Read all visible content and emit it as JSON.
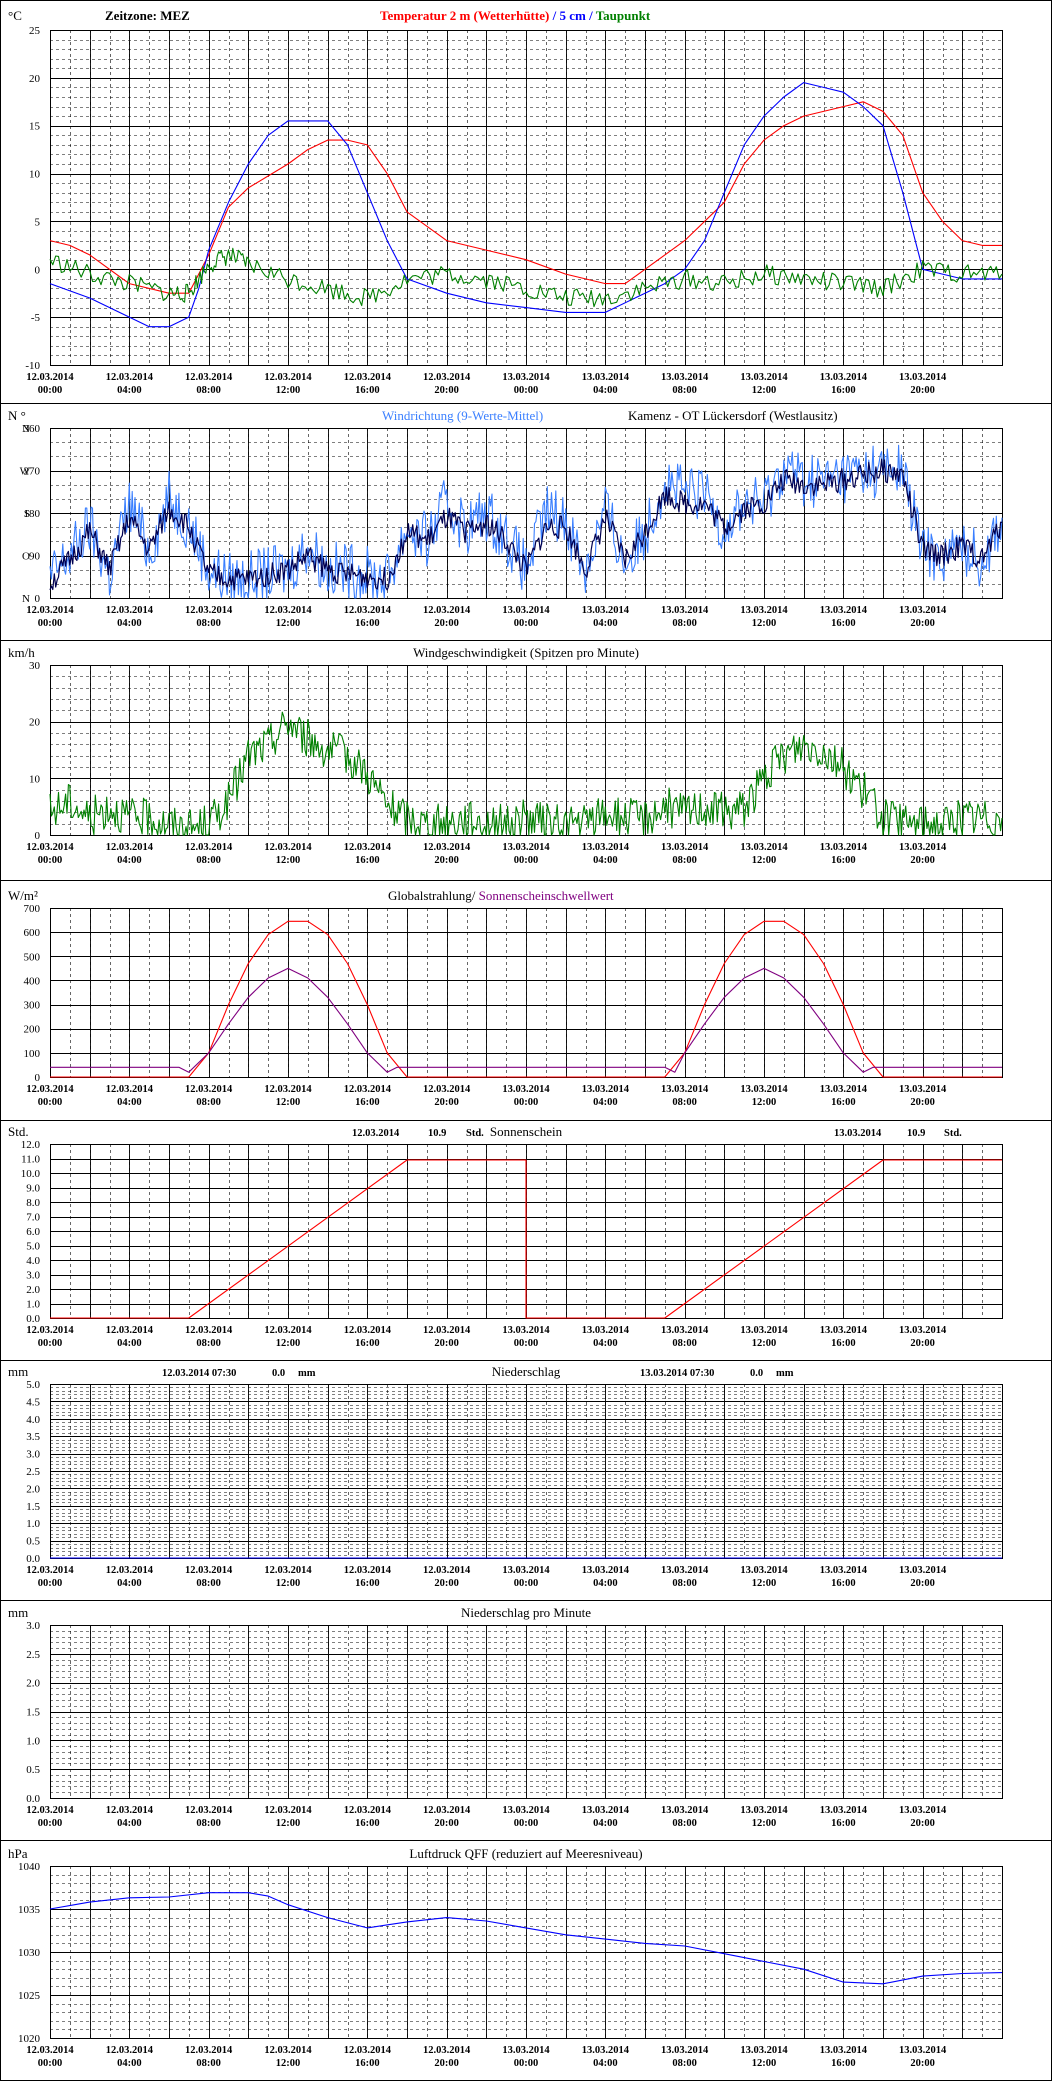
{
  "time_labels": [
    [
      "12.03.2014",
      "00:00"
    ],
    [
      "12.03.2014",
      "04:00"
    ],
    [
      "12.03.2014",
      "08:00"
    ],
    [
      "12.03.2014",
      "12:00"
    ],
    [
      "12.03.2014",
      "16:00"
    ],
    [
      "12.03.2014",
      "20:00"
    ],
    [
      "13.03.2014",
      "00:00"
    ],
    [
      "13.03.2014",
      "04:00"
    ],
    [
      "13.03.2014",
      "08:00"
    ],
    [
      "13.03.2014",
      "12:00"
    ],
    [
      "13.03.2014",
      "16:00"
    ],
    [
      "13.03.2014",
      "20:00"
    ]
  ],
  "colors": {
    "red": "#ff0000",
    "blue": "#0000ff",
    "green": "#008000",
    "purple": "#800080",
    "lightblue": "#3a7fff",
    "navy": "#000050"
  },
  "chart_data": [
    {
      "type": "line",
      "unit": "°C",
      "title_left": "Zeitzone: MEZ",
      "title_parts": [
        "Temperatur 2 m (Wetterhütte)",
        " / ",
        "5 cm",
        " / ",
        "Taupunkt"
      ],
      "ylim": [
        -10,
        25
      ],
      "y_ticks": [
        "25",
        "20",
        "15",
        "10",
        "5",
        "0",
        "-5",
        "-10"
      ],
      "series": [
        {
          "name": "Temperatur 2 m (Wetterhütte)",
          "color": "#ff0000",
          "x": [
            0,
            1,
            2,
            4,
            6,
            7,
            8,
            9,
            10,
            12,
            13,
            14,
            15,
            16,
            17,
            18,
            20,
            22,
            24,
            26,
            27,
            28,
            29,
            30,
            32,
            34,
            35,
            36,
            37,
            38,
            39,
            40,
            41,
            42,
            43,
            44,
            45,
            46,
            47,
            48
          ],
          "values": [
            3,
            2.5,
            1.5,
            -1.5,
            -2.5,
            -2.5,
            1.5,
            6.5,
            8.5,
            11,
            12.5,
            13.5,
            13.5,
            13,
            10,
            6,
            3,
            2,
            1,
            -0.5,
            -1,
            -1.5,
            -1.5,
            0,
            3,
            7,
            11,
            13.5,
            15,
            16,
            16.5,
            17,
            17.5,
            16.5,
            14,
            8,
            5,
            3,
            2.5,
            2.5
          ]
        },
        {
          "name": "5 cm",
          "color": "#0000ff",
          "x": [
            0,
            2,
            4,
            5,
            6,
            7,
            7.5,
            8,
            9,
            10,
            11,
            12,
            13,
            14,
            15,
            16,
            17,
            18,
            20,
            22,
            24,
            26,
            28,
            30,
            31,
            32,
            33,
            34,
            35,
            36,
            37,
            38,
            39,
            40,
            41,
            42,
            43,
            44,
            45,
            46,
            47,
            48
          ],
          "values": [
            -1.5,
            -3,
            -5,
            -6,
            -6,
            -5,
            -2,
            2,
            7,
            11,
            14,
            15.5,
            15.5,
            15.5,
            13,
            8,
            3,
            -1,
            -2.5,
            -3.5,
            -4,
            -4.5,
            -4.5,
            -2.5,
            -1.5,
            0,
            3,
            8,
            13,
            16,
            18,
            19.5,
            19,
            18.5,
            17,
            15,
            8,
            0,
            -0.5,
            -1,
            -1,
            -1
          ]
        },
        {
          "name": "Taupunkt",
          "color": "#008000",
          "x": [
            0,
            2,
            4,
            6,
            7,
            8,
            9,
            10,
            12,
            14,
            16,
            18,
            20,
            22,
            24,
            26,
            28,
            30,
            32,
            34,
            36,
            38,
            40,
            42,
            44,
            46,
            48
          ],
          "values": [
            1,
            -0.5,
            -1.5,
            -2.5,
            -2.5,
            0.5,
            1.5,
            0.5,
            -1,
            -2,
            -3,
            -1,
            -0.5,
            -1,
            -2,
            -3,
            -3,
            -2,
            -1,
            -1.5,
            -0.5,
            -1,
            -1.5,
            -2,
            0,
            -0.5,
            -0.5
          ]
        }
      ]
    },
    {
      "type": "line",
      "unit": "N °",
      "title_parts": [
        "Windrichtung (9-Werte-Mittel)",
        "Kamenz - OT Lückersdorf (Westlausitz)"
      ],
      "ylim": [
        0,
        360
      ],
      "y_ticks": [
        "360",
        "270",
        "180",
        "90",
        "0"
      ],
      "y_dir_labels": [
        "N",
        "W",
        "S",
        "O",
        "N"
      ],
      "series": [
        {
          "name": "Windrichtung (9-Werte-Mittel)",
          "color": "#3a7fff",
          "x": [
            0,
            1,
            2,
            3,
            4,
            5,
            6,
            7,
            8,
            9,
            10,
            11,
            12,
            13,
            14,
            15,
            16,
            17,
            18,
            19,
            20,
            21,
            22,
            23,
            24,
            25,
            26,
            27,
            28,
            29,
            30,
            31,
            32,
            33,
            34,
            35,
            36,
            37,
            38,
            39,
            40,
            41,
            42,
            43,
            44,
            45,
            46,
            47,
            48
          ],
          "values": [
            40,
            90,
            150,
            50,
            200,
            100,
            210,
            160,
            60,
            40,
            40,
            50,
            60,
            110,
            60,
            60,
            50,
            40,
            150,
            120,
            200,
            150,
            180,
            130,
            60,
            180,
            170,
            60,
            190,
            70,
            140,
            250,
            220,
            220,
            150,
            200,
            200,
            280,
            250,
            250,
            260,
            270,
            270,
            270,
            100,
            90,
            110,
            80,
            170
          ]
        },
        {
          "name": "9-Werte-Mittel",
          "color": "#000050",
          "x": [
            0,
            1,
            2,
            3,
            4,
            5,
            6,
            7,
            8,
            9,
            10,
            11,
            12,
            13,
            14,
            15,
            16,
            17,
            18,
            19,
            20,
            21,
            22,
            23,
            24,
            25,
            26,
            27,
            28,
            29,
            30,
            31,
            32,
            33,
            34,
            35,
            36,
            37,
            38,
            39,
            40,
            41,
            42,
            43,
            44,
            45,
            46,
            47,
            48
          ],
          "values": [
            30,
            80,
            140,
            60,
            170,
            100,
            190,
            150,
            50,
            40,
            40,
            50,
            60,
            90,
            60,
            50,
            45,
            40,
            140,
            120,
            170,
            140,
            160,
            120,
            60,
            150,
            150,
            60,
            170,
            80,
            140,
            220,
            200,
            200,
            150,
            190,
            200,
            250,
            240,
            240,
            250,
            260,
            270,
            260,
            100,
            90,
            110,
            80,
            160
          ]
        }
      ]
    },
    {
      "type": "line",
      "unit": "km/h",
      "title": "Windgeschwindigkeit (Spitzen pro Minute)",
      "ylim": [
        0,
        30
      ],
      "y_ticks": [
        "30",
        "20",
        "10",
        "0"
      ],
      "series": [
        {
          "name": "Windgeschwindigkeit",
          "color": "#008000",
          "x": [
            0,
            1,
            2,
            3,
            4,
            5,
            6,
            7,
            8,
            9,
            10,
            11,
            12,
            13,
            14,
            15,
            16,
            17,
            18,
            19,
            20,
            21,
            22,
            23,
            24,
            25,
            26,
            27,
            28,
            29,
            30,
            31,
            32,
            33,
            34,
            35,
            36,
            37,
            38,
            39,
            40,
            41,
            42,
            43,
            44,
            45,
            46,
            47,
            48
          ],
          "values": [
            4,
            6,
            3,
            5,
            3,
            3,
            2,
            1,
            2,
            6,
            14,
            16,
            20,
            17,
            15,
            14,
            11,
            5,
            3,
            2,
            2,
            3,
            2,
            2,
            3,
            2,
            2,
            2,
            4,
            3,
            3,
            5,
            4,
            5,
            4,
            5,
            10,
            14,
            16,
            15,
            12,
            8,
            3,
            2,
            2,
            2,
            3,
            3,
            3
          ]
        }
      ]
    },
    {
      "type": "line",
      "unit": "W/m²",
      "title_parts": [
        "Globalstrahlung",
        "/ ",
        "Sonnenscheinschwellwert"
      ],
      "ylim": [
        0,
        700
      ],
      "y_ticks": [
        "700",
        "600",
        "500",
        "400",
        "300",
        "200",
        "100",
        "0"
      ],
      "series": [
        {
          "name": "Globalstrahlung",
          "color": "#ff0000",
          "x": [
            0,
            7,
            8,
            9,
            10,
            11,
            12,
            13,
            14,
            15,
            16,
            17,
            18,
            24,
            31,
            32,
            33,
            34,
            35,
            36,
            37,
            38,
            39,
            40,
            41,
            42,
            48
          ],
          "values": [
            0,
            0,
            100,
            300,
            470,
            590,
            645,
            645,
            590,
            470,
            300,
            100,
            0,
            0,
            0,
            100,
            300,
            470,
            590,
            645,
            645,
            590,
            470,
            300,
            100,
            0,
            0
          ]
        },
        {
          "name": "Sonnenscheinschwellwert",
          "color": "#800080",
          "x": [
            0,
            6.5,
            7,
            8,
            9,
            10,
            11,
            12,
            13,
            14,
            15,
            16,
            17,
            17.5,
            31,
            31.5,
            32,
            33,
            34,
            35,
            36,
            37,
            38,
            39,
            40,
            41,
            41.5,
            48
          ],
          "values": [
            40,
            40,
            20,
            100,
            220,
            330,
            410,
            450,
            410,
            330,
            220,
            100,
            20,
            40,
            40,
            20,
            100,
            220,
            330,
            410,
            450,
            410,
            330,
            220,
            100,
            20,
            40,
            40
          ]
        }
      ]
    },
    {
      "type": "line",
      "unit": "Std.",
      "title": "Sonnenschein",
      "annotations": [
        {
          "date": "12.03.2014",
          "value": "10.9",
          "unit": "Std."
        },
        {
          "date": "13.03.2014",
          "value": "10.9",
          "unit": "Std."
        }
      ],
      "ylim": [
        0,
        12
      ],
      "y_ticks": [
        "12.0",
        "11.0",
        "10.0",
        "9.0",
        "8.0",
        "7.0",
        "6.0",
        "5.0",
        "4.0",
        "3.0",
        "2.0",
        "1.0",
        "0.0"
      ],
      "series": [
        {
          "name": "Sonnenschein",
          "color": "#ff0000",
          "x": [
            0,
            7,
            18,
            24,
            24,
            31,
            42,
            48
          ],
          "values": [
            0,
            0,
            10.9,
            10.9,
            0,
            0,
            10.9,
            10.9
          ]
        }
      ]
    },
    {
      "type": "line",
      "unit": "mm",
      "title": "Niederschlag",
      "annotations": [
        {
          "date": "12.03.2014 07:30",
          "value": "0.0",
          "unit": "mm"
        },
        {
          "date": "13.03.2014 07:30",
          "value": "0.0",
          "unit": "mm"
        }
      ],
      "ylim": [
        0,
        5
      ],
      "y_ticks": [
        "5.0",
        "4.5",
        "4.0",
        "3.5",
        "3.0",
        "2.5",
        "2.0",
        "1.5",
        "1.0",
        "0.5",
        "0.0"
      ],
      "series": [
        {
          "name": "Niederschlag",
          "color": "#0000ff",
          "x": [
            0,
            48
          ],
          "values": [
            0,
            0
          ]
        }
      ]
    },
    {
      "type": "line",
      "unit": "mm",
      "title": "Niederschlag pro Minute",
      "ylim": [
        0,
        3
      ],
      "y_ticks": [
        "3.0",
        "2.5",
        "2.0",
        "1.5",
        "1.0",
        "0.5",
        "0.0"
      ],
      "series": []
    },
    {
      "type": "line",
      "unit": "hPa",
      "title": "Luftdruck QFF (reduziert auf Meeresniveau)",
      "ylim": [
        1020,
        1040
      ],
      "y_ticks": [
        "1040",
        "1035",
        "1030",
        "1025",
        "1020"
      ],
      "series": [
        {
          "name": "Luftdruck QFF",
          "color": "#0000ff",
          "x": [
            0,
            2,
            4,
            6,
            8,
            10,
            11,
            12,
            14,
            16,
            18,
            20,
            22,
            24,
            26,
            28,
            30,
            32,
            34,
            36,
            38,
            40,
            42,
            44,
            46,
            48
          ],
          "values": [
            1035,
            1035.8,
            1036.3,
            1036.4,
            1036.9,
            1036.9,
            1036.5,
            1035.5,
            1034,
            1032.8,
            1033.5,
            1034,
            1033.6,
            1032.8,
            1032,
            1031.5,
            1031,
            1030.7,
            1029.8,
            1028.9,
            1028,
            1026.5,
            1026.3,
            1027.2,
            1027.5,
            1027.6
          ]
        }
      ]
    }
  ]
}
